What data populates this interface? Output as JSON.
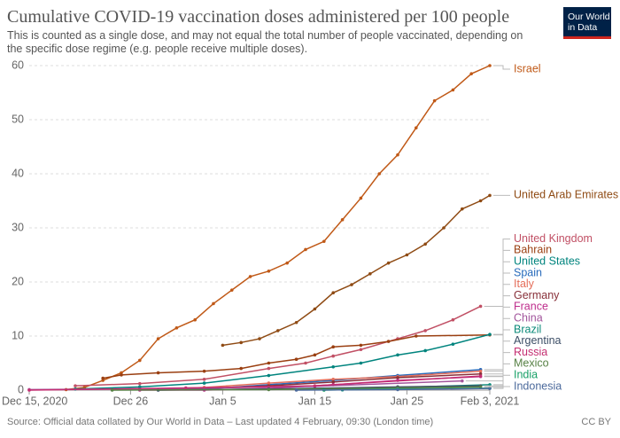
{
  "chart_data": {
    "type": "line",
    "title": "Cumulative COVID-19 vaccination doses administered per 100 people",
    "subtitle": "This is counted as a single dose, and may not equal the total number of people vaccinated, depending on the specific dose regime (e.g. people receive multiple doses).",
    "logo": [
      "Our World",
      "in Data"
    ],
    "source": "Source: Official data collated by Our World in Data – Last updated 4 February, 09:30 (London time)",
    "license": "CC BY",
    "xlim": [
      "2020-12-15",
      "2021-02-03"
    ],
    "xticks": [
      {
        "value": "2020-12-15",
        "label": "Dec 15, 2020"
      },
      {
        "value": "2020-12-26",
        "label": "Dec 26"
      },
      {
        "value": "2021-01-05",
        "label": "Jan 5"
      },
      {
        "value": "2021-01-15",
        "label": "Jan 15"
      },
      {
        "value": "2021-01-25",
        "label": "Jan 25"
      },
      {
        "value": "2021-02-03",
        "label": "Feb 3, 2021"
      }
    ],
    "ylim": [
      0,
      60
    ],
    "yticks": [
      0,
      10,
      20,
      30,
      40,
      50,
      60
    ],
    "grid": true,
    "series": [
      {
        "name": "Israel",
        "color": "#c05917",
        "x": [
          "2020-12-19",
          "2020-12-21",
          "2020-12-23",
          "2020-12-25",
          "2020-12-27",
          "2020-12-29",
          "2020-12-31",
          "2021-01-02",
          "2021-01-04",
          "2021-01-06",
          "2021-01-08",
          "2021-01-10",
          "2021-01-12",
          "2021-01-14",
          "2021-01-16",
          "2021-01-18",
          "2021-01-20",
          "2021-01-22",
          "2021-01-24",
          "2021-01-26",
          "2021-01-28",
          "2021-01-30",
          "2021-02-01",
          "2021-02-03"
        ],
        "values": [
          0.1,
          0.5,
          1.8,
          3.2,
          5.5,
          9.5,
          11.5,
          13,
          16,
          18.5,
          21,
          22,
          23.5,
          26,
          27.5,
          31.5,
          35.5,
          40,
          43.5,
          48.5,
          53.5,
          55.5,
          58.5,
          60
        ]
      },
      {
        "name": "United Arab Emirates",
        "color": "#8f4b14",
        "x": [
          "2021-01-05",
          "2021-01-07",
          "2021-01-09",
          "2021-01-11",
          "2021-01-13",
          "2021-01-15",
          "2021-01-17",
          "2021-01-19",
          "2021-01-21",
          "2021-01-23",
          "2021-01-25",
          "2021-01-27",
          "2021-01-29",
          "2021-01-31",
          "2021-02-02",
          "2021-02-03"
        ],
        "values": [
          8.3,
          8.8,
          9.5,
          11,
          12.5,
          15,
          18,
          19.5,
          21.5,
          23.5,
          25,
          27,
          30,
          33.5,
          35,
          36
        ]
      },
      {
        "name": "United Kingdom",
        "color": "#c15065",
        "x": [
          "2020-12-20",
          "2020-12-27",
          "2021-01-03",
          "2021-01-10",
          "2021-01-14",
          "2021-01-17",
          "2021-01-20",
          "2021-01-24",
          "2021-01-27",
          "2021-01-30",
          "2021-02-02"
        ],
        "values": [
          0.8,
          1.2,
          2,
          4,
          5,
          6.3,
          7.5,
          9.5,
          11,
          13,
          15.5
        ]
      },
      {
        "name": "Bahrain",
        "color": "#9a3f11",
        "x": [
          "2020-12-23",
          "2020-12-25",
          "2020-12-29",
          "2021-01-03",
          "2021-01-07",
          "2021-01-10",
          "2021-01-13",
          "2021-01-15",
          "2021-01-17",
          "2021-01-20",
          "2021-01-23",
          "2021-01-26",
          "2021-02-03"
        ],
        "values": [
          2.2,
          2.8,
          3.2,
          3.5,
          4,
          5,
          5.7,
          6.5,
          8,
          8.3,
          9,
          10,
          10.2
        ]
      },
      {
        "name": "United States",
        "color": "#00847e",
        "x": [
          "2020-12-20",
          "2020-12-27",
          "2021-01-03",
          "2021-01-10",
          "2021-01-17",
          "2021-01-20",
          "2021-01-24",
          "2021-01-27",
          "2021-01-30",
          "2021-02-03"
        ],
        "values": [
          0.2,
          0.6,
          1.3,
          2.7,
          4.3,
          5,
          6.5,
          7.3,
          8.5,
          10.3
        ]
      },
      {
        "name": "Spain",
        "color": "#286bbb",
        "x": [
          "2020-12-27",
          "2021-01-03",
          "2021-01-10",
          "2021-01-17",
          "2021-01-24",
          "2021-02-02"
        ],
        "values": [
          0.1,
          0.2,
          1,
          1.8,
          2.7,
          3.8
        ]
      },
      {
        "name": "Italy",
        "color": "#e56e5a",
        "x": [
          "2020-12-27",
          "2021-01-03",
          "2021-01-10",
          "2021-01-17",
          "2021-01-24",
          "2021-02-02"
        ],
        "values": [
          0.1,
          0.5,
          1.3,
          2,
          2.5,
          3.5
        ]
      },
      {
        "name": "Germany",
        "color": "#883039",
        "x": [
          "2020-12-27",
          "2021-01-03",
          "2021-01-10",
          "2021-01-17",
          "2021-01-24",
          "2021-02-02"
        ],
        "values": [
          0.1,
          0.3,
          0.8,
          1.5,
          2.3,
          3
        ]
      },
      {
        "name": "France",
        "color": "#be2d8c",
        "x": [
          "2020-12-27",
          "2021-01-03",
          "2021-01-10",
          "2021-01-17",
          "2021-01-24",
          "2021-02-02"
        ],
        "values": [
          0,
          0,
          0.3,
          1,
          1.8,
          2.5
        ]
      },
      {
        "name": "China",
        "color": "#a2559c",
        "x": [
          "2020-12-15",
          "2021-01-01",
          "2021-01-15",
          "2021-01-31"
        ],
        "values": [
          0.1,
          0.3,
          0.7,
          1.7
        ]
      },
      {
        "name": "Brazil",
        "color": "#0c8a79",
        "x": [
          "2021-01-18",
          "2021-01-24",
          "2021-02-03"
        ],
        "values": [
          0.05,
          0.5,
          1
        ]
      },
      {
        "name": "Argentina",
        "color": "#3c4e66",
        "x": [
          "2020-12-29",
          "2021-01-10",
          "2021-01-24",
          "2021-02-02"
        ],
        "values": [
          0.01,
          0.2,
          0.6,
          0.8
        ]
      },
      {
        "name": "Russia",
        "color": "#c42e71",
        "x": [
          "2020-12-15",
          "2021-01-01",
          "2021-01-15",
          "2021-02-02"
        ],
        "values": [
          0,
          0.4,
          0.8,
          2.6
        ]
      },
      {
        "name": "Mexico",
        "color": "#578145",
        "x": [
          "2020-12-24",
          "2021-01-10",
          "2021-01-24",
          "2021-02-02"
        ],
        "values": [
          0,
          0.1,
          0.4,
          0.6
        ]
      },
      {
        "name": "India",
        "color": "#18a067",
        "x": [
          "2021-01-16",
          "2021-01-24",
          "2021-02-03"
        ],
        "values": [
          0.01,
          0.2,
          0.35
        ]
      },
      {
        "name": "Indonesia",
        "color": "#4c6a9c",
        "x": [
          "2021-01-13",
          "2021-01-24",
          "2021-02-03"
        ],
        "values": [
          0,
          0.1,
          0.3
        ]
      }
    ]
  }
}
